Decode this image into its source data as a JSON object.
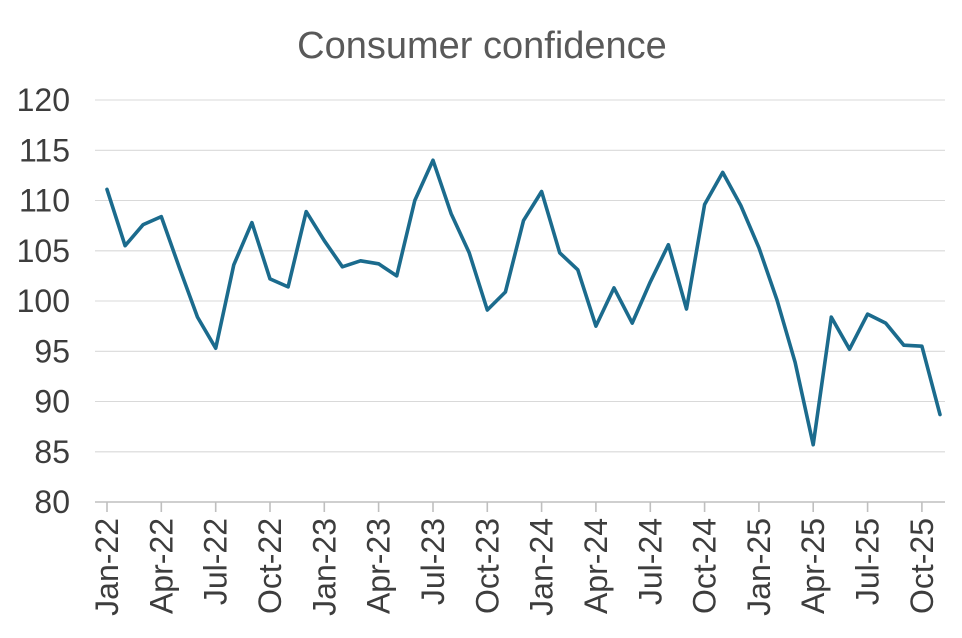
{
  "chart_data": {
    "type": "line",
    "title": "Consumer confidence",
    "x": [
      "Jan-22",
      "Feb-22",
      "Mar-22",
      "Apr-22",
      "May-22",
      "Jun-22",
      "Jul-22",
      "Aug-22",
      "Sep-22",
      "Oct-22",
      "Nov-22",
      "Dec-22",
      "Jan-23",
      "Feb-23",
      "Mar-23",
      "Apr-23",
      "May-23",
      "Jun-23",
      "Jul-23",
      "Aug-23",
      "Sep-23",
      "Oct-23",
      "Nov-23",
      "Dec-23",
      "Jan-24",
      "Feb-24",
      "Mar-24",
      "Apr-24",
      "May-24",
      "Jun-24",
      "Jul-24",
      "Aug-24",
      "Sep-24",
      "Oct-24",
      "Nov-24",
      "Dec-24",
      "Jan-25",
      "Feb-25",
      "Mar-25",
      "Apr-25",
      "May-25",
      "Jun-25",
      "Jul-25",
      "Aug-25",
      "Sep-25",
      "Oct-25",
      "Nov-25"
    ],
    "values": [
      111.1,
      105.5,
      107.6,
      108.4,
      103.3,
      98.4,
      95.3,
      103.6,
      107.8,
      102.2,
      101.4,
      108.9,
      106.0,
      103.4,
      104.0,
      103.7,
      102.5,
      110.0,
      114.0,
      108.7,
      104.8,
      99.1,
      100.9,
      108.0,
      110.9,
      104.8,
      103.1,
      97.5,
      101.3,
      97.8,
      101.9,
      105.6,
      99.2,
      109.6,
      112.8,
      109.5,
      105.3,
      100.1,
      93.9,
      85.7,
      98.4,
      95.2,
      98.7,
      97.8,
      95.6,
      95.5,
      88.7
    ],
    "ylim": [
      80,
      120
    ],
    "yticks": [
      80,
      85,
      90,
      95,
      100,
      105,
      110,
      115,
      120
    ],
    "xtick_every": 3,
    "xtick_labels_shown": [
      "Jan-22",
      "Apr-22",
      "Jul-22",
      "Oct-22",
      "Jan-23",
      "Apr-23",
      "Jul-23",
      "Oct-23",
      "Jan-24",
      "Apr-24",
      "Jul-24",
      "Oct-24",
      "Jan-25",
      "Apr-25",
      "Jul-25",
      "Oct-25"
    ],
    "grid": "horizontal",
    "legend": "none",
    "line_color": "#1b6b8d",
    "grid_color": "#d9d9d9",
    "axis_color": "#bfbfbf",
    "tick_label_color": "#3d3d3d",
    "title_color": "#595959"
  }
}
